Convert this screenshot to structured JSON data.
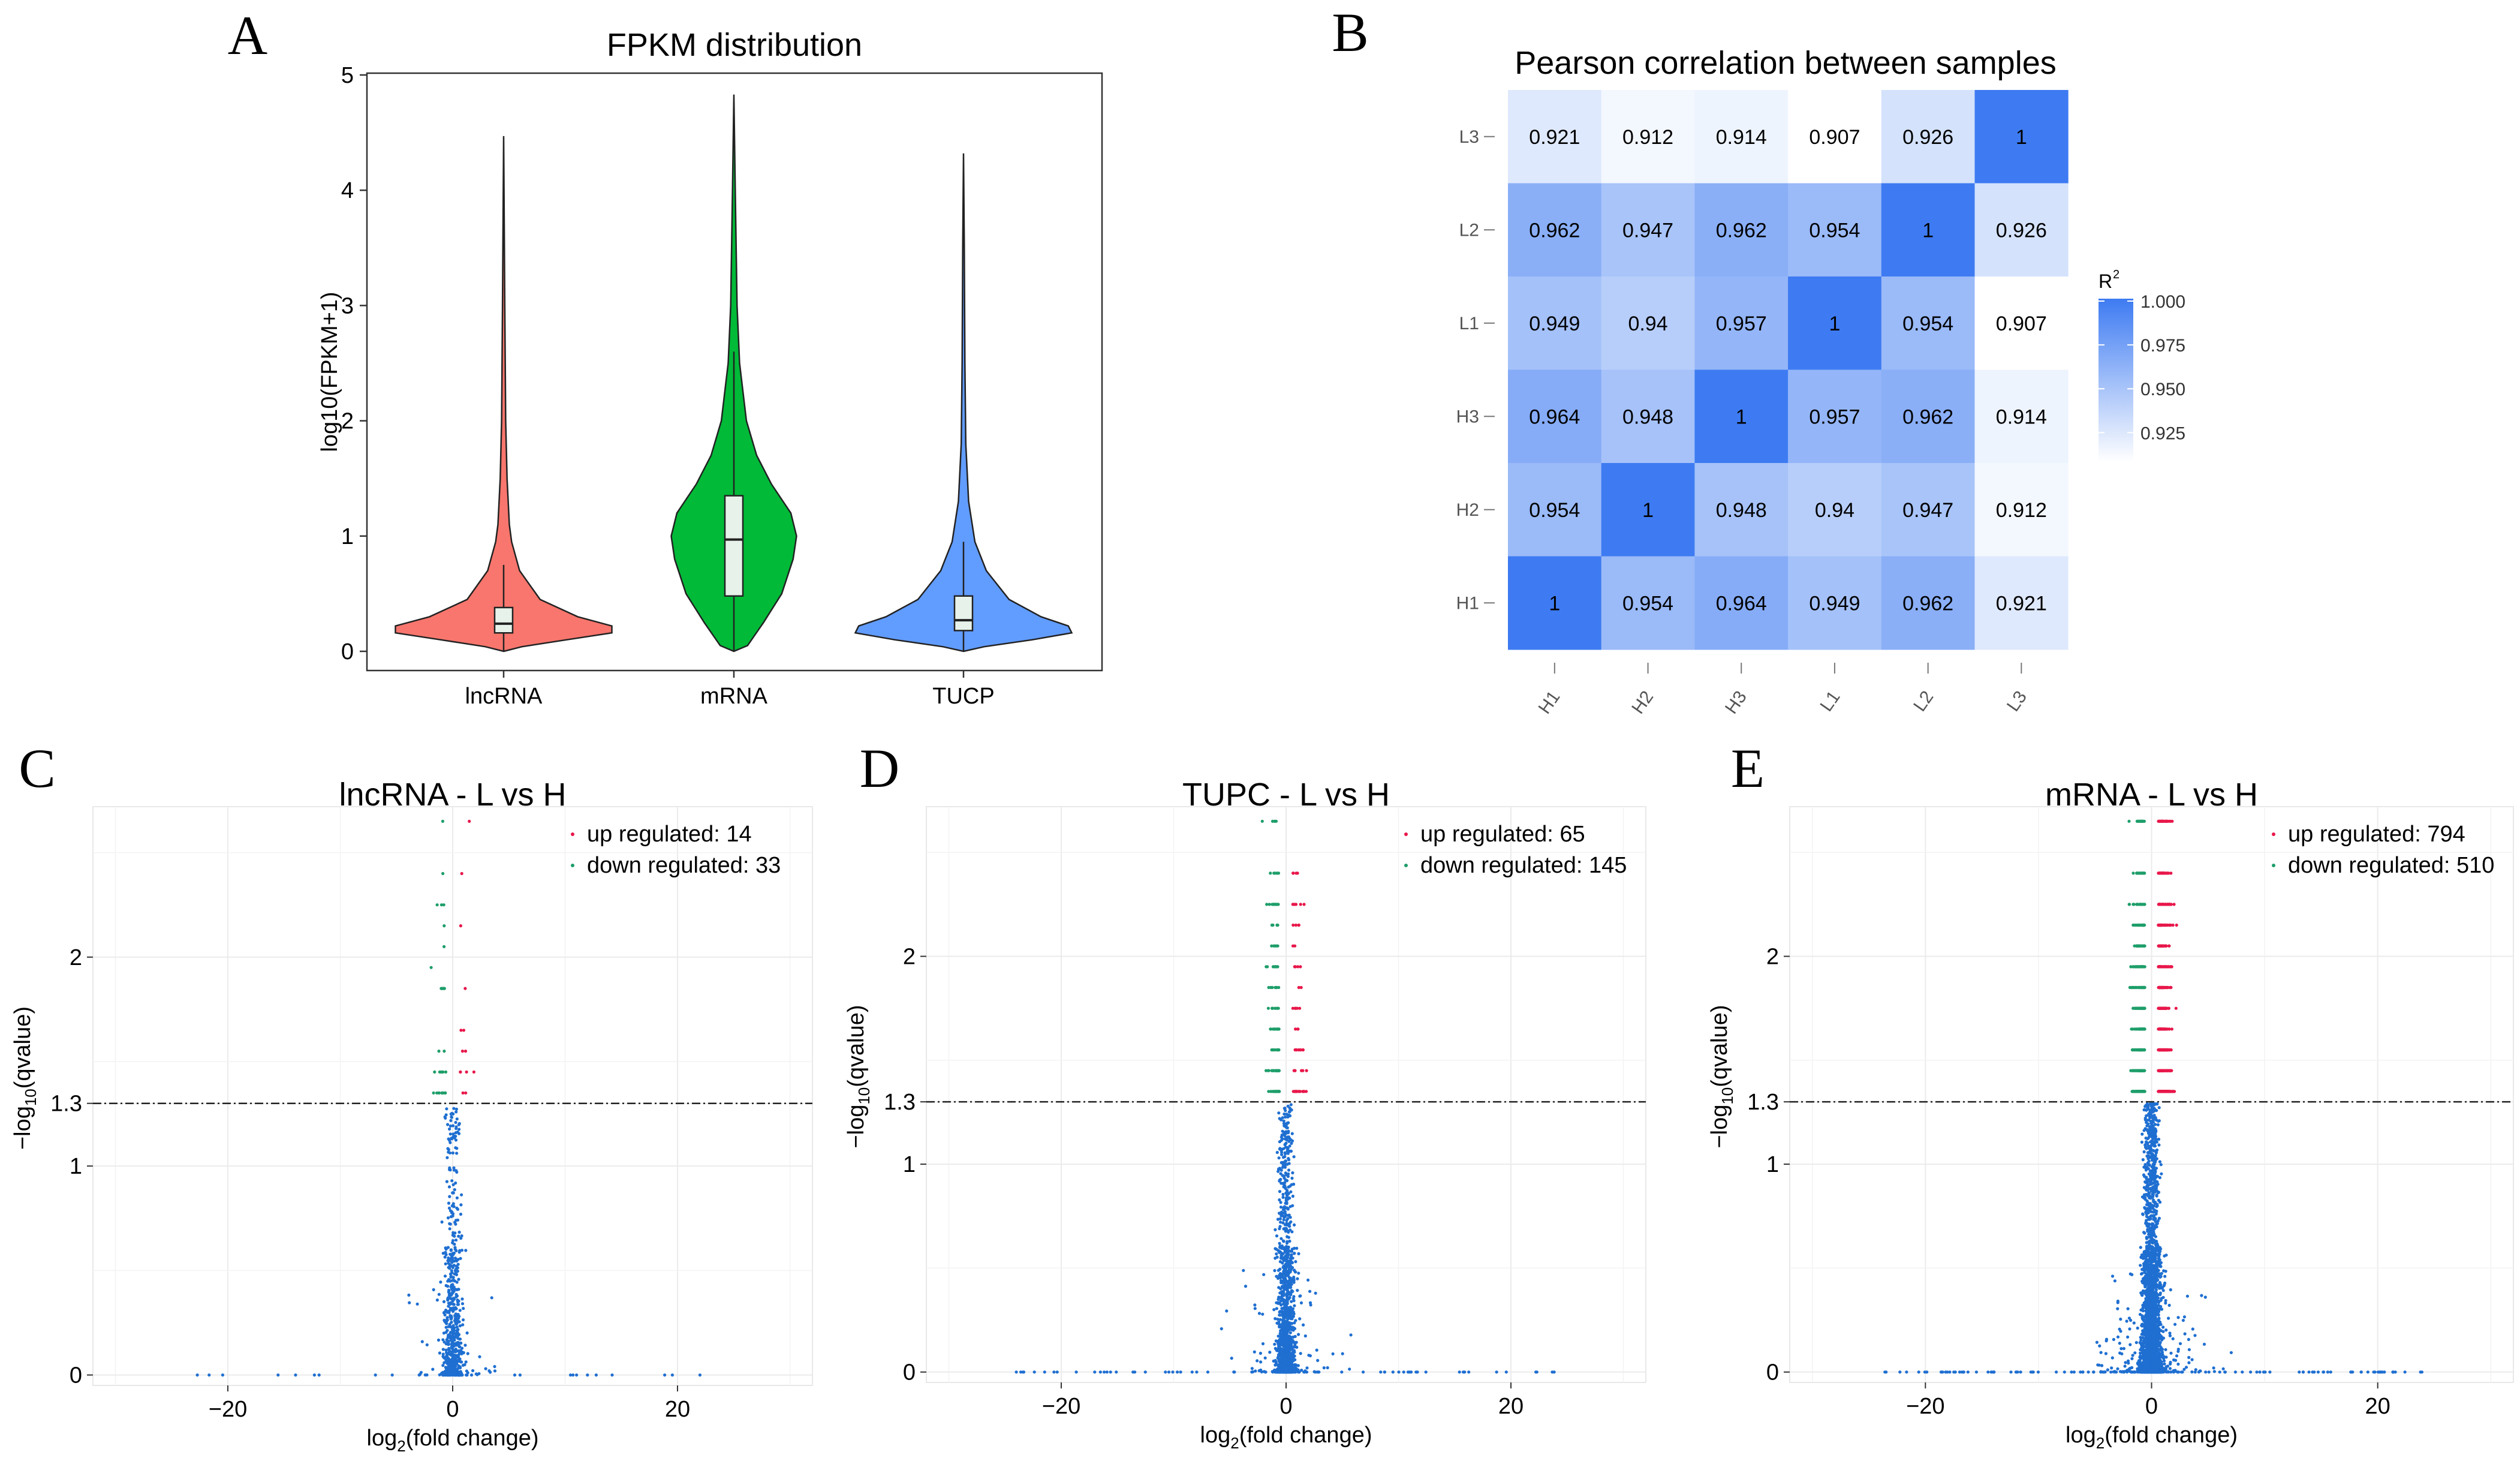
{
  "chart_data": [
    {
      "panel": "A",
      "type": "violin",
      "title": "FPKM distribution",
      "xlabel": "",
      "ylabel": "log10(FPKM+1)",
      "ylim": [
        0,
        5
      ],
      "yticks": [
        "0",
        "1",
        "2",
        "3",
        "4",
        "5"
      ],
      "categories": [
        "lncRNA",
        "mRNA",
        "TUCP"
      ],
      "colors": [
        "#F8766D",
        "#00BA38",
        "#619CFF"
      ],
      "box": [
        {
          "category": "lncRNA",
          "q1": 0.16,
          "median": 0.24,
          "q3": 0.38,
          "whisker_low": 0.0,
          "whisker_high": 0.75,
          "max": 4.47
        },
        {
          "category": "mRNA",
          "q1": 0.48,
          "median": 0.97,
          "q3": 1.35,
          "whisker_low": 0.0,
          "whisker_high": 2.6,
          "max": 4.83
        },
        {
          "category": "TUCP",
          "q1": 0.18,
          "median": 0.27,
          "q3": 0.48,
          "whisker_low": 0.0,
          "whisker_high": 0.95,
          "max": 4.32
        }
      ]
    },
    {
      "panel": "B",
      "type": "heatmap",
      "title": "Pearson correlation between samples",
      "rows": [
        "L3",
        "L2",
        "L1",
        "H3",
        "H2",
        "H1"
      ],
      "cols": [
        "H1",
        "H2",
        "H3",
        "L1",
        "L2",
        "L3"
      ],
      "values": [
        [
          "0.921",
          "0.912",
          "0.914",
          "0.907",
          "0.926",
          "1"
        ],
        [
          "0.962",
          "0.947",
          "0.962",
          "0.954",
          "1",
          "0.926"
        ],
        [
          "0.949",
          "0.94",
          "0.957",
          "1",
          "0.954",
          "0.907"
        ],
        [
          "0.964",
          "0.948",
          "1",
          "0.957",
          "0.962",
          "0.914"
        ],
        [
          "0.954",
          "1",
          "0.948",
          "0.94",
          "0.947",
          "0.912"
        ],
        [
          "1",
          "0.954",
          "0.964",
          "0.949",
          "0.962",
          "0.921"
        ]
      ],
      "legend_title": "R",
      "legend_title_sup": "2",
      "legend_ticks": [
        "1.000",
        "0.975",
        "0.950",
        "0.925"
      ],
      "color_low": "#ffffff",
      "color_high": "#3E7BF2",
      "value_range": [
        0.907,
        1.0
      ]
    },
    {
      "panel": "C",
      "type": "scatter",
      "title": "lncRNA - L vs H",
      "xlabel_main": "log",
      "xlabel_sub": "2",
      "xlabel_rest": "(fold change)",
      "ylabel_pre": "−log",
      "ylabel_sub": "10",
      "ylabel_rest": "(qvalue)",
      "xlim": [
        -32,
        32
      ],
      "ylim": [
        -0.05,
        2.72
      ],
      "xticks": [
        -20,
        0,
        20
      ],
      "xtick_labels": [
        "−20",
        "0",
        "20"
      ],
      "yticks": [
        0,
        1,
        1.3,
        2
      ],
      "ytick_labels": [
        "0",
        "1",
        "1.3",
        "2"
      ],
      "threshold": 1.3,
      "legend": [
        "up regulated: 14",
        "down regulated: 33"
      ],
      "up_count": 14,
      "down_count": 33,
      "ns_count": 700,
      "colors": {
        "up": "#E8174A",
        "down": "#1E9E6A",
        "ns": "#1F6FD1"
      }
    },
    {
      "panel": "D",
      "type": "scatter",
      "title": "TUPC - L vs H",
      "xlabel_main": "log",
      "xlabel_sub": "2",
      "xlabel_rest": "(fold change)",
      "ylabel_pre": "−log",
      "ylabel_sub": "10",
      "ylabel_rest": "(qvalue)",
      "xlim": [
        -32,
        32
      ],
      "ylim": [
        -0.05,
        2.72
      ],
      "xticks": [
        -20,
        0,
        20
      ],
      "xtick_labels": [
        "−20",
        "0",
        "20"
      ],
      "yticks": [
        0,
        1,
        1.3,
        2
      ],
      "ytick_labels": [
        "0",
        "1",
        "1.3",
        "2"
      ],
      "threshold": 1.3,
      "legend": [
        "up regulated: 65",
        "down regulated: 145"
      ],
      "up_count": 65,
      "down_count": 145,
      "ns_count": 1600,
      "colors": {
        "up": "#E8174A",
        "down": "#1E9E6A",
        "ns": "#1F6FD1"
      }
    },
    {
      "panel": "E",
      "type": "scatter",
      "title": "mRNA - L vs H",
      "xlabel_main": "log",
      "xlabel_sub": "2",
      "xlabel_rest": "(fold change)",
      "ylabel_pre": "−log",
      "ylabel_sub": "10",
      "ylabel_rest": "(qvalue)",
      "xlim": [
        -32,
        32
      ],
      "ylim": [
        -0.05,
        2.72
      ],
      "xticks": [
        -20,
        0,
        20
      ],
      "xtick_labels": [
        "−20",
        "0",
        "20"
      ],
      "yticks": [
        0,
        1,
        1.3,
        2
      ],
      "ytick_labels": [
        "0",
        "1",
        "1.3",
        "2"
      ],
      "threshold": 1.3,
      "legend": [
        "up regulated: 794",
        "down regulated: 510"
      ],
      "up_count": 794,
      "down_count": 510,
      "ns_count": 3200,
      "colors": {
        "up": "#E8174A",
        "down": "#1E9E6A",
        "ns": "#1F6FD1"
      }
    }
  ]
}
